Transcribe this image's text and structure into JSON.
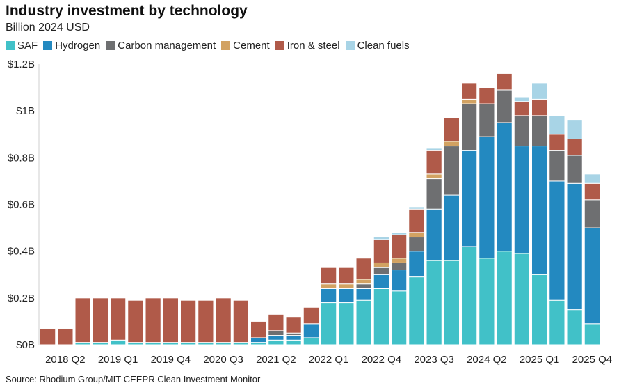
{
  "title": "Industry investment by technology",
  "subtitle": "Billion 2024 USD",
  "source": "Source: Rhodium Group/MIT-CEEPR Clean Investment Monitor",
  "chart_data": {
    "type": "bar",
    "stacked": true,
    "title": "Industry investment by technology",
    "ylabel": "Billion 2024 USD",
    "xlabel": "",
    "ylim": [
      0,
      1.2
    ],
    "yticks": [
      {
        "value": 0,
        "label": "$0B"
      },
      {
        "value": 0.2,
        "label": "$0.2B"
      },
      {
        "value": 0.4,
        "label": "$0.4B"
      },
      {
        "value": 0.6,
        "label": "$0.6B"
      },
      {
        "value": 0.8,
        "label": "$0.8B"
      },
      {
        "value": 1.0,
        "label": "$1B"
      },
      {
        "value": 1.2,
        "label": "$1.2B"
      }
    ],
    "categories": [
      "2018 Q1",
      "2018 Q2",
      "2018 Q3",
      "2018 Q4",
      "2019 Q1",
      "2019 Q2",
      "2019 Q3",
      "2019 Q4",
      "2020 Q1",
      "2020 Q2",
      "2020 Q3",
      "2020 Q4",
      "2021 Q1",
      "2021 Q2",
      "2021 Q3",
      "2021 Q4",
      "2022 Q1",
      "2022 Q2",
      "2022 Q3",
      "2022 Q4",
      "2023 Q1",
      "2023 Q2",
      "2023 Q3",
      "2023 Q4",
      "2024 Q1",
      "2024 Q2",
      "2024 Q3",
      "2024 Q4",
      "2025 Q1",
      "2025 Q2",
      "2025 Q3",
      "2025 Q4"
    ],
    "xtick_labels": [
      "2018 Q2",
      "2019 Q1",
      "2019 Q4",
      "2020 Q3",
      "2021 Q2",
      "2022 Q1",
      "2022 Q4",
      "2023 Q3",
      "2024 Q2",
      "2025 Q1",
      "2025 Q4"
    ],
    "series": [
      {
        "name": "SAF",
        "color": "#41c1c8",
        "values": [
          0,
          0,
          0.01,
          0.01,
          0.02,
          0.01,
          0.01,
          0.01,
          0.01,
          0.01,
          0.01,
          0.01,
          0.01,
          0.02,
          0.02,
          0.03,
          0.18,
          0.18,
          0.19,
          0.24,
          0.23,
          0.29,
          0.36,
          0.36,
          0.42,
          0.37,
          0.4,
          0.39,
          0.3,
          0.19,
          0.15,
          0.09
        ]
      },
      {
        "name": "Hydrogen",
        "color": "#2389c0",
        "values": [
          0,
          0,
          0,
          0,
          0,
          0,
          0,
          0,
          0,
          0,
          0,
          0,
          0.02,
          0.02,
          0.02,
          0.06,
          0.06,
          0.06,
          0.05,
          0.06,
          0.09,
          0.11,
          0.22,
          0.28,
          0.41,
          0.52,
          0.55,
          0.46,
          0.55,
          0.51,
          0.54,
          0.41
        ]
      },
      {
        "name": "Carbon management",
        "color": "#6e6f71",
        "values": [
          0,
          0,
          0,
          0,
          0,
          0,
          0,
          0,
          0,
          0,
          0,
          0,
          0,
          0.02,
          0.01,
          0,
          0,
          0,
          0.02,
          0.03,
          0.03,
          0.06,
          0.13,
          0.21,
          0.2,
          0.14,
          0.14,
          0.13,
          0.13,
          0.13,
          0.12,
          0.12
        ]
      },
      {
        "name": "Cement",
        "color": "#d2a262",
        "values": [
          0,
          0,
          0,
          0,
          0,
          0,
          0,
          0,
          0,
          0,
          0,
          0,
          0,
          0,
          0,
          0,
          0.02,
          0.02,
          0.02,
          0.02,
          0.02,
          0.02,
          0.02,
          0.02,
          0.02,
          0,
          0,
          0,
          0,
          0,
          0,
          0
        ]
      },
      {
        "name": "Iron & steel",
        "color": "#b05a49",
        "values": [
          0.07,
          0.07,
          0.19,
          0.19,
          0.18,
          0.18,
          0.19,
          0.19,
          0.18,
          0.18,
          0.19,
          0.18,
          0.07,
          0.07,
          0.07,
          0.07,
          0.07,
          0.07,
          0.09,
          0.1,
          0.1,
          0.1,
          0.1,
          0.1,
          0.07,
          0.07,
          0.07,
          0.06,
          0.07,
          0.07,
          0.07,
          0.07
        ]
      },
      {
        "name": "Clean fuels",
        "color": "#a8d4e6",
        "values": [
          0,
          0,
          0,
          0,
          0,
          0,
          0,
          0,
          0,
          0,
          0,
          0,
          0,
          0,
          0,
          0,
          0,
          0,
          0,
          0.01,
          0.01,
          0.01,
          0.01,
          0,
          0,
          0,
          0,
          0.02,
          0.07,
          0.08,
          0.08,
          0.04
        ]
      }
    ]
  }
}
